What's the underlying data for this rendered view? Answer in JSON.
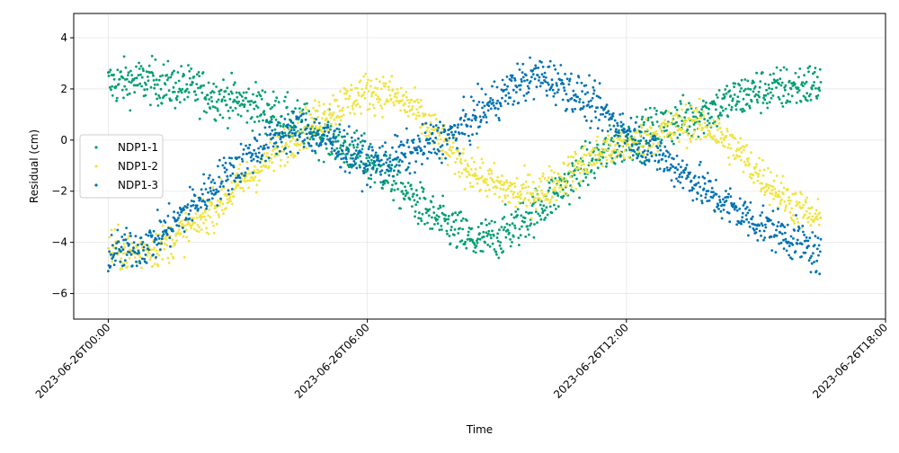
{
  "chart_data": {
    "type": "scatter",
    "title": "",
    "xlabel": "Time",
    "ylabel": "Residual (cm)",
    "x_unit": "hours since 2023-06-26T00:00",
    "xlim": [
      -0.8,
      18.0
    ],
    "ylim": [
      -7.0,
      4.95
    ],
    "xticks": [
      0,
      6,
      12,
      18
    ],
    "xtick_labels": [
      "2023-06-26T00:00",
      "2023-06-26T06:00",
      "2023-06-26T12:00",
      "2023-06-26T18:00"
    ],
    "yticks": [
      -6,
      -4,
      -2,
      0,
      2,
      4
    ],
    "ytick_labels": [
      "−6",
      "−4",
      "−2",
      "0",
      "2",
      "4"
    ],
    "grid": true,
    "legend_position": "center-left",
    "series": [
      {
        "name": "NDP1-1",
        "color": "#009E73",
        "x": [
          0,
          0.5,
          1,
          1.5,
          2,
          2.5,
          3,
          3.5,
          4,
          4.5,
          5,
          5.5,
          6,
          6.5,
          7,
          7.5,
          8,
          8.5,
          9,
          9.5,
          10,
          10.5,
          11,
          11.5,
          12,
          12.5,
          13,
          13.5,
          14,
          14.5,
          15,
          15.5,
          16,
          16.5
        ],
        "y": [
          2.2,
          2.3,
          2.3,
          2.1,
          2.0,
          1.7,
          1.5,
          1.3,
          0.9,
          0.6,
          0.2,
          -0.3,
          -0.8,
          -1.4,
          -2.2,
          -3.0,
          -3.5,
          -4.0,
          -3.8,
          -3.3,
          -2.6,
          -1.9,
          -1.1,
          -0.5,
          0.0,
          0.3,
          0.6,
          0.9,
          1.2,
          1.6,
          1.9,
          2.0,
          2.1,
          2.2
        ],
        "spread": 0.8
      },
      {
        "name": "NDP1-2",
        "color": "#F0E442",
        "x": [
          0,
          0.5,
          1,
          1.5,
          2,
          2.5,
          3,
          3.5,
          4,
          4.5,
          5,
          5.5,
          6,
          6.5,
          7,
          7.5,
          8,
          8.5,
          9,
          9.5,
          10,
          10.5,
          11,
          11.5,
          12,
          12.5,
          13,
          13.5,
          14,
          14.5,
          15,
          15.5,
          16,
          16.5
        ],
        "y": [
          -4.2,
          -4.4,
          -4.3,
          -3.9,
          -3.3,
          -2.6,
          -1.8,
          -1.1,
          -0.3,
          0.4,
          1.0,
          1.5,
          1.9,
          1.8,
          1.3,
          0.4,
          -0.6,
          -1.3,
          -1.8,
          -2.1,
          -2.0,
          -1.5,
          -0.9,
          -0.4,
          -0.2,
          0.1,
          0.4,
          0.7,
          0.4,
          -0.3,
          -1.2,
          -2.0,
          -2.7,
          -3.2
        ],
        "spread": 0.7
      },
      {
        "name": "NDP1-3",
        "color": "#0072B2",
        "x": [
          0,
          0.5,
          1,
          1.5,
          2,
          2.5,
          3,
          3.5,
          4,
          4.5,
          5,
          5.5,
          6,
          6.5,
          7,
          7.5,
          8,
          8.5,
          9,
          9.5,
          10,
          10.5,
          11,
          11.5,
          12,
          12.5,
          13,
          13.5,
          14,
          14.5,
          15,
          15.5,
          16,
          16.5
        ],
        "y": [
          -4.4,
          -4.3,
          -4.0,
          -3.3,
          -2.5,
          -1.7,
          -1.0,
          -0.3,
          0.2,
          0.4,
          0.1,
          -0.4,
          -0.9,
          -0.8,
          -0.5,
          -0.1,
          0.2,
          0.9,
          1.6,
          2.2,
          2.5,
          2.2,
          1.6,
          1.0,
          0.3,
          -0.3,
          -0.9,
          -1.5,
          -2.2,
          -2.7,
          -3.2,
          -3.6,
          -4.0,
          -4.6
        ],
        "spread": 0.75
      }
    ]
  }
}
